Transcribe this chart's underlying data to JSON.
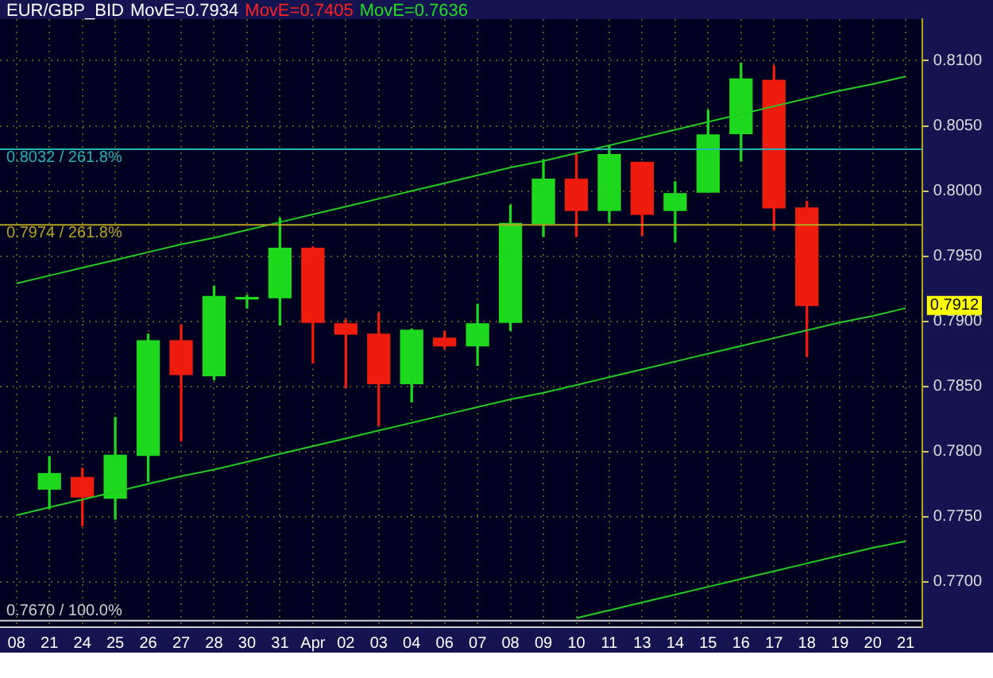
{
  "chart_data": {
    "type": "candlestick",
    "title": "EUR/GBP_BID",
    "annotations": [
      "MovE=0.7934",
      "MovE=0.7405",
      "MovE=0.7636",
      "0.7912"
    ],
    "categories": [
      "08",
      "21",
      "24",
      "25",
      "26",
      "27",
      "28",
      "30",
      "31",
      "Apr",
      "02",
      "03",
      "04",
      "06",
      "07",
      "08",
      "09",
      "10",
      "11",
      "13",
      "14",
      "15",
      "16",
      "17",
      "18",
      "19",
      "20",
      "21"
    ],
    "ohlc": [
      null,
      [
        0.7771,
        0.7796,
        0.7756,
        0.7783
      ],
      [
        0.778,
        0.7787,
        0.7743,
        0.7765
      ],
      [
        0.7764,
        0.7826,
        0.7748,
        0.7797
      ],
      [
        0.7797,
        0.789,
        0.7777,
        0.7885
      ],
      [
        0.7885,
        0.7897,
        0.7808,
        0.7859
      ],
      [
        0.7858,
        0.7927,
        0.7855,
        0.7919
      ],
      [
        0.7917,
        0.792,
        0.791,
        0.7918
      ],
      [
        0.7918,
        0.7979,
        0.7897,
        0.7956
      ],
      [
        0.7956,
        0.7957,
        0.7868,
        0.7899
      ],
      [
        0.7898,
        0.7901,
        0.7849,
        0.789
      ],
      [
        0.789,
        0.7906,
        0.782,
        0.7852
      ],
      [
        0.7852,
        0.7894,
        0.7838,
        0.7893
      ],
      [
        0.7887,
        0.7892,
        0.7879,
        0.7881
      ],
      [
        0.7881,
        0.7913,
        0.7866,
        0.7898
      ],
      [
        0.7899,
        0.7989,
        0.7893,
        0.7975
      ],
      [
        0.7975,
        0.8024,
        0.7965,
        0.8009
      ],
      [
        0.8009,
        0.8028,
        0.7965,
        0.7985
      ],
      [
        0.7985,
        0.8035,
        0.7976,
        0.8028
      ],
      [
        0.8022,
        0.8022,
        0.7966,
        0.7982
      ],
      [
        0.7985,
        0.8007,
        0.7961,
        0.7998
      ],
      [
        0.7999,
        0.8062,
        0.7999,
        0.8043
      ],
      [
        0.8044,
        0.8098,
        0.8023,
        0.8086
      ],
      [
        0.8085,
        0.8096,
        0.797,
        0.7987
      ],
      [
        0.7987,
        0.7992,
        0.7873,
        0.7912
      ],
      null,
      null,
      null
    ],
    "series": [
      {
        "type": "line",
        "color": "#22cc22",
        "values": [
          0.7929,
          0.7935,
          0.7941,
          0.7947,
          0.7953,
          0.7959,
          0.7964,
          0.797,
          0.7976,
          0.7982,
          0.7988,
          0.7994,
          0.8,
          0.8006,
          0.8012,
          0.8018,
          0.8023,
          0.8029,
          0.8035,
          0.8041,
          0.8047,
          0.8053,
          0.8059,
          0.8065,
          0.8071,
          0.8077,
          0.8082,
          0.8088
        ]
      },
      {
        "type": "line",
        "color": "#22cc22",
        "values": [
          0.7751,
          0.7757,
          0.7763,
          0.7769,
          0.7775,
          0.7781,
          0.7786,
          0.7792,
          0.7798,
          0.7804,
          0.781,
          0.7816,
          0.7822,
          0.7828,
          0.7834,
          0.784,
          0.7845,
          0.7851,
          0.7857,
          0.7863,
          0.7869,
          0.7875,
          0.7881,
          0.7887,
          0.7893,
          0.7899,
          0.7904,
          0.791
        ]
      },
      {
        "type": "line",
        "color": "#22cc22",
        "values": [
          null,
          null,
          null,
          null,
          null,
          null,
          null,
          null,
          null,
          null,
          null,
          null,
          null,
          null,
          null,
          null,
          null,
          0.7672,
          0.7678,
          0.7684,
          0.769,
          0.7696,
          0.7702,
          0.7708,
          0.7714,
          0.772,
          0.7726,
          0.7731
        ]
      }
    ],
    "ref_lines": [
      {
        "axis": "y",
        "value": 0.8032,
        "label": "0.8032 / 261.8%",
        "color": "#22b4b4"
      },
      {
        "axis": "y",
        "value": 0.7974,
        "label": "0.7974 / 261.8%",
        "color": "#b4a420"
      },
      {
        "axis": "y",
        "value": 0.767,
        "label": "0.7670 / 100.0%",
        "color": "#d0d0d0"
      }
    ],
    "ylim": [
      0.7665,
      0.8132
    ],
    "yticks": [
      {
        "value": 0.77,
        "label": "0.7700"
      },
      {
        "value": 0.775,
        "label": "0.7750"
      },
      {
        "value": 0.78,
        "label": "0.7800"
      },
      {
        "value": 0.785,
        "label": "0.7850"
      },
      {
        "value": 0.79,
        "label": "0.7900"
      },
      {
        "value": 0.795,
        "label": "0.7950"
      },
      {
        "value": 0.8,
        "label": "0.8000"
      },
      {
        "value": 0.805,
        "label": "0.8050"
      },
      {
        "value": 0.81,
        "label": "0.8100"
      }
    ],
    "grid": true,
    "legend": false
  }
}
